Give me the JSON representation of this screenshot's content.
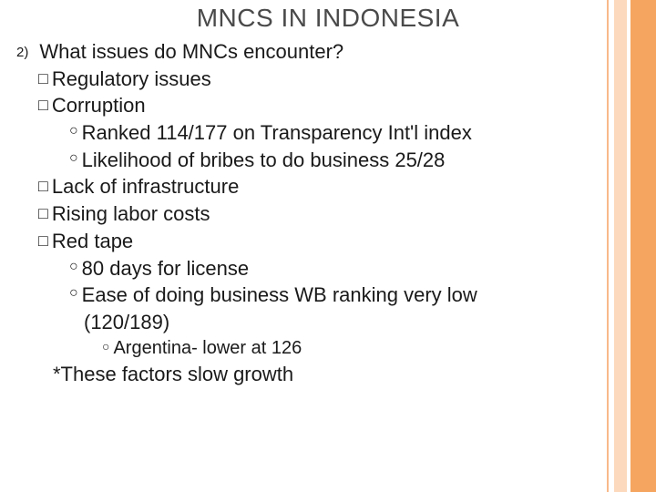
{
  "title": "MNCS IN INDONESIA",
  "main_number": "2)",
  "main_text": "What issues do MNCs encounter?",
  "items": {
    "regulatory": "Regulatory issues",
    "corruption": "Corruption",
    "corruption_sub1": "Ranked 114/177 on Transparency Int'l index",
    "corruption_sub2": "Likelihood of bribes to do business 25/28",
    "infrastructure": "Lack of infrastructure",
    "labor": "Rising labor costs",
    "redtape": "Red tape",
    "redtape_sub1": "80 days for license",
    "redtape_sub2a": "Ease of doing business WB ranking very low",
    "redtape_sub2b": "(120/189)",
    "redtape_sub3": "Argentina- lower at 126"
  },
  "footnote": "*These factors slow growth",
  "bullets": {
    "square": "□",
    "ring": "○"
  },
  "colors": {
    "text": "#1a1a1a",
    "title": "#4a4a4a",
    "stripe1": "#f8b98a",
    "stripe2": "#fcd9bc",
    "stripe3": "#f5a55f"
  }
}
